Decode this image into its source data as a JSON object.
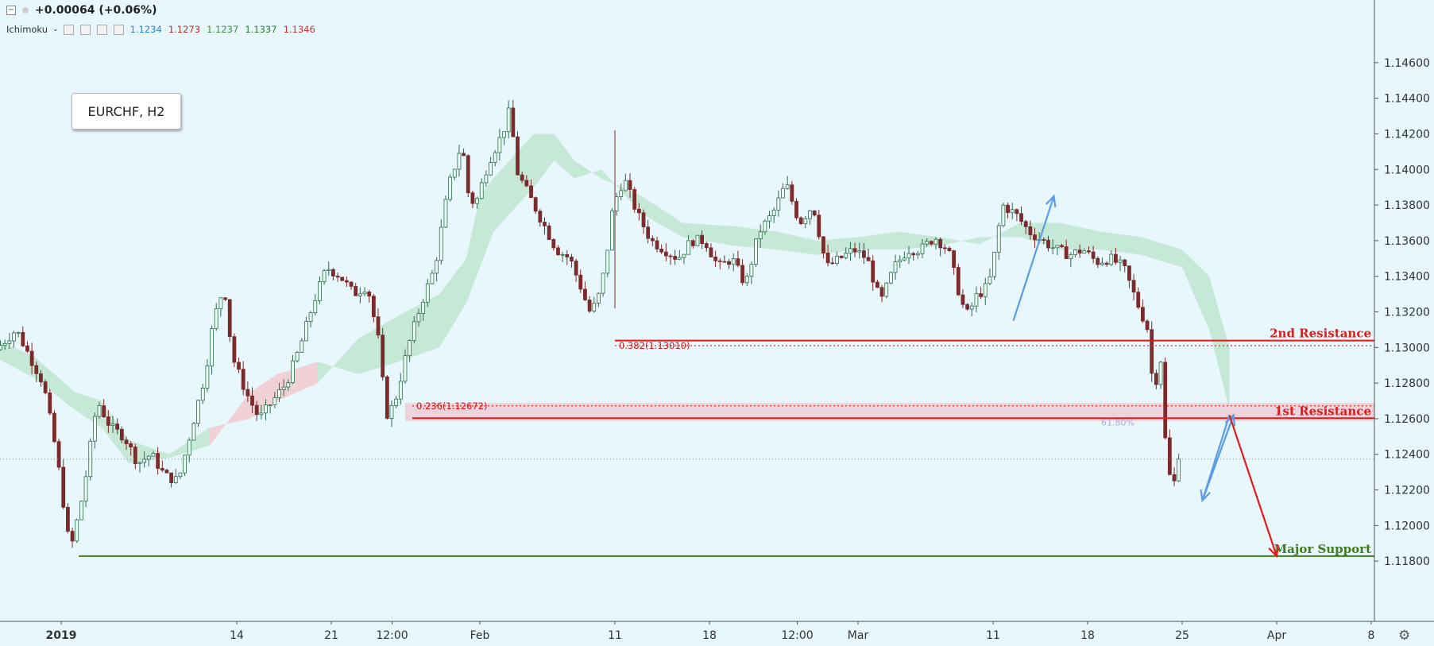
{
  "legend": {
    "change": "+0.00064 (+0.06%)",
    "indicator_name": "Ichimoku",
    "indicator_values": [
      {
        "value": "1.1234",
        "color": "#2a85c9"
      },
      {
        "value": "1.1273",
        "color": "#a8362c"
      },
      {
        "value": "1.1237",
        "color": "#3b8f3b"
      },
      {
        "value": "1.1337",
        "color": "#2f7a2f"
      },
      {
        "value": "1.1346",
        "color": "#d03434"
      }
    ]
  },
  "symbol_label": "EURCHF, H2",
  "colors": {
    "up_candle": "#2f6b4e",
    "down_candle": "#7a2b2b",
    "cloud_bull": "#bfe5cf",
    "cloud_bear": "#f2c9cf",
    "resistance": "#e11a1a",
    "support": "#3e7d1e",
    "forecast_blue": "#5c9be6",
    "last_price": "#6aa988"
  },
  "chart_data": {
    "type": "candlestick",
    "symbol": "EURCHF",
    "timeframe": "H2",
    "ylim": [
      1.1164,
      1.1476
    ],
    "y_ticks": [
      {
        "label": "1.14600",
        "value": 1.146
      },
      {
        "label": "1.14400",
        "value": 1.144
      },
      {
        "label": "1.14200",
        "value": 1.142
      },
      {
        "label": "1.14000",
        "value": 1.14
      },
      {
        "label": "1.13800",
        "value": 1.138
      },
      {
        "label": "1.13600",
        "value": 1.136
      },
      {
        "label": "1.13400",
        "value": 1.134
      },
      {
        "label": "1.13200",
        "value": 1.132
      },
      {
        "label": "1.13000",
        "value": 1.13
      },
      {
        "label": "1.12800",
        "value": 1.128
      },
      {
        "label": "1.12600",
        "value": 1.126
      },
      {
        "label": "1.12400",
        "value": 1.124
      },
      {
        "label": "1.12200",
        "value": 1.122
      },
      {
        "label": "1.12000",
        "value": 1.12
      },
      {
        "label": "1.11800",
        "value": 1.118
      }
    ],
    "x_ticks": [
      {
        "label": "2019",
        "bold": true,
        "day": 0
      },
      {
        "label": "14",
        "bold": false,
        "day": 13
      },
      {
        "label": "21",
        "bold": false,
        "day": 20
      },
      {
        "label": "12:00",
        "bold": false,
        "day": 24.5
      },
      {
        "label": "Feb",
        "bold": false,
        "day": 31
      },
      {
        "label": "11",
        "bold": false,
        "day": 41
      },
      {
        "label": "18",
        "bold": false,
        "day": 48
      },
      {
        "label": "12:00",
        "bold": false,
        "day": 54.5
      },
      {
        "label": "Mar",
        "bold": false,
        "day": 59
      },
      {
        "label": "11",
        "bold": false,
        "day": 69
      },
      {
        "label": "18",
        "bold": false,
        "day": 76
      },
      {
        "label": "25",
        "bold": false,
        "day": 83
      },
      {
        "label": "Apr",
        "bold": false,
        "day": 90
      },
      {
        "label": "8",
        "bold": false,
        "day": 97
      }
    ],
    "path_anchors": [
      [
        -5,
        1.1295
      ],
      [
        -3,
        1.131
      ],
      [
        -1,
        1.128
      ],
      [
        0,
        1.124
      ],
      [
        1,
        1.1185
      ],
      [
        2,
        1.122
      ],
      [
        3,
        1.127
      ],
      [
        4,
        1.1255
      ],
      [
        5,
        1.125
      ],
      [
        6,
        1.1235
      ],
      [
        7,
        1.124
      ],
      [
        8,
        1.1228
      ],
      [
        9,
        1.1225
      ],
      [
        10,
        1.1255
      ],
      [
        11,
        1.1285
      ],
      [
        11.6,
        1.1315
      ],
      [
        12.4,
        1.1335
      ],
      [
        13,
        1.1295
      ],
      [
        14,
        1.1275
      ],
      [
        15,
        1.126
      ],
      [
        16,
        1.127
      ],
      [
        17,
        1.128
      ],
      [
        18,
        1.13
      ],
      [
        19,
        1.1325
      ],
      [
        20,
        1.1345
      ],
      [
        21,
        1.134
      ],
      [
        22,
        1.133
      ],
      [
        23,
        1.1335
      ],
      [
        23.8,
        1.1305
      ],
      [
        24.4,
        1.1262
      ],
      [
        25,
        1.1268
      ],
      [
        26,
        1.13
      ],
      [
        27,
        1.1325
      ],
      [
        28,
        1.1345
      ],
      [
        29,
        1.139
      ],
      [
        30,
        1.1415
      ],
      [
        30.5,
        1.1385
      ],
      [
        31,
        1.138
      ],
      [
        32,
        1.1405
      ],
      [
        33,
        1.142
      ],
      [
        33.6,
        1.1435
      ],
      [
        34,
        1.14
      ],
      [
        35,
        1.1385
      ],
      [
        36,
        1.137
      ],
      [
        37,
        1.1355
      ],
      [
        38,
        1.135
      ],
      [
        39,
        1.133
      ],
      [
        39.4,
        1.132
      ],
      [
        40,
        1.1325
      ],
      [
        40.6,
        1.1345
      ],
      [
        41.2,
        1.138
      ],
      [
        42,
        1.1395
      ],
      [
        43,
        1.1375
      ],
      [
        44,
        1.136
      ],
      [
        45,
        1.1355
      ],
      [
        46,
        1.135
      ],
      [
        47,
        1.136
      ],
      [
        48,
        1.136
      ],
      [
        49,
        1.1345
      ],
      [
        50,
        1.135
      ],
      [
        51,
        1.1335
      ],
      [
        52,
        1.1365
      ],
      [
        53,
        1.1375
      ],
      [
        54,
        1.1392
      ],
      [
        55,
        1.137
      ],
      [
        56,
        1.138
      ],
      [
        57,
        1.1345
      ],
      [
        58,
        1.135
      ],
      [
        59,
        1.1355
      ],
      [
        60,
        1.135
      ],
      [
        61,
        1.1325
      ],
      [
        62,
        1.1345
      ],
      [
        63,
        1.1355
      ],
      [
        64,
        1.1355
      ],
      [
        65,
        1.1362
      ],
      [
        66,
        1.1355
      ],
      [
        67,
        1.1325
      ],
      [
        67.5,
        1.1318
      ],
      [
        68,
        1.1328
      ],
      [
        69,
        1.1335
      ],
      [
        69.5,
        1.1355
      ],
      [
        70,
        1.138
      ],
      [
        71,
        1.1375
      ],
      [
        72,
        1.1365
      ],
      [
        73,
        1.136
      ],
      [
        74,
        1.1355
      ],
      [
        75,
        1.1352
      ],
      [
        76,
        1.1355
      ],
      [
        77,
        1.1348
      ],
      [
        78,
        1.135
      ],
      [
        79,
        1.1345
      ],
      [
        80,
        1.1325
      ],
      [
        80.8,
        1.131
      ],
      [
        81.2,
        1.1275
      ],
      [
        81.8,
        1.1295
      ],
      [
        82,
        1.1255
      ],
      [
        82.3,
        1.123
      ],
      [
        82.7,
        1.1222
      ],
      [
        83,
        1.1237
      ]
    ],
    "ichimoku_cloud": [
      [
        -5,
        1.1305,
        1.1295
      ],
      [
        -2,
        1.1295,
        1.1283
      ],
      [
        1,
        1.1275,
        1.1265
      ],
      [
        3,
        1.127,
        1.1255
      ],
      [
        5,
        1.1248,
        1.1235
      ],
      [
        8,
        1.124,
        1.1238
      ],
      [
        11,
        1.1255,
        1.1245
      ],
      [
        14,
        1.126,
        1.1275
      ],
      [
        16,
        1.127,
        1.1285
      ],
      [
        19,
        1.128,
        1.1292
      ],
      [
        22,
        1.1305,
        1.1285
      ],
      [
        25,
        1.1318,
        1.1292
      ],
      [
        28,
        1.133,
        1.13
      ],
      [
        30,
        1.135,
        1.1325
      ],
      [
        31,
        1.1385,
        1.1345
      ],
      [
        32,
        1.1395,
        1.1365
      ],
      [
        35,
        1.142,
        1.139
      ],
      [
        36.5,
        1.142,
        1.1405
      ],
      [
        38,
        1.1405,
        1.1395
      ],
      [
        40,
        1.1395,
        1.14
      ],
      [
        43,
        1.1385,
        1.1375
      ],
      [
        46,
        1.137,
        1.1362
      ],
      [
        50,
        1.1368,
        1.1357
      ],
      [
        53,
        1.1365,
        1.1355
      ],
      [
        56,
        1.136,
        1.1352
      ],
      [
        59,
        1.1362,
        1.1355
      ],
      [
        62,
        1.1365,
        1.1355
      ],
      [
        65,
        1.1362,
        1.1357
      ],
      [
        68,
        1.1358,
        1.1362
      ],
      [
        71,
        1.137,
        1.1362
      ],
      [
        74,
        1.137,
        1.1355
      ],
      [
        77,
        1.1365,
        1.1355
      ],
      [
        80,
        1.1362,
        1.1352
      ],
      [
        83,
        1.1355,
        1.1345
      ],
      [
        85,
        1.134,
        1.131
      ],
      [
        86.5,
        1.13,
        1.1265
      ]
    ],
    "levels": [
      {
        "name": "2nd Resistance",
        "price": 1.13039,
        "price_label": "1.13039",
        "color": "#e11a1a",
        "from_day": 41
      },
      {
        "name": "1st Resistance",
        "price": 1.12603,
        "price_label": "1.12603",
        "color": "#e11a1a",
        "from_day": 26
      },
      {
        "name": "Major Support",
        "price": 1.11828,
        "price_label": "1.11828",
        "color": "#3e7d1e",
        "from_day": 1.3
      }
    ],
    "fib_levels": [
      {
        "label": "0.382(1.13010)",
        "price": 1.1301,
        "from_day": 41
      },
      {
        "label": "0.236(1.12672)",
        "price": 1.12672,
        "from_day": 26
      }
    ],
    "faint_label": {
      "text": "61.80%",
      "day": 77,
      "price": 1.1258
    },
    "last_price": {
      "price": 1.12373,
      "label": "1.12373"
    },
    "zone": {
      "from_day": 25.5,
      "to_day": 99,
      "high": 1.12672,
      "low": 1.12603
    },
    "forecast_arrows": [
      {
        "color": "#5c9be6",
        "points": [
          [
            70.5,
            1.1315
          ],
          [
            73.5,
            1.1385
          ]
        ]
      },
      {
        "color": "#5c9be6",
        "points": [
          [
            86.5,
            1.1262
          ],
          [
            84.5,
            1.1214
          ]
        ]
      },
      {
        "color": "#5c9be6",
        "points": [
          [
            84.5,
            1.1214
          ],
          [
            86.8,
            1.1262
          ]
        ]
      },
      {
        "color": "#e11a1a",
        "points": [
          [
            86.5,
            1.1262
          ],
          [
            90,
            1.11828
          ]
        ]
      }
    ]
  }
}
